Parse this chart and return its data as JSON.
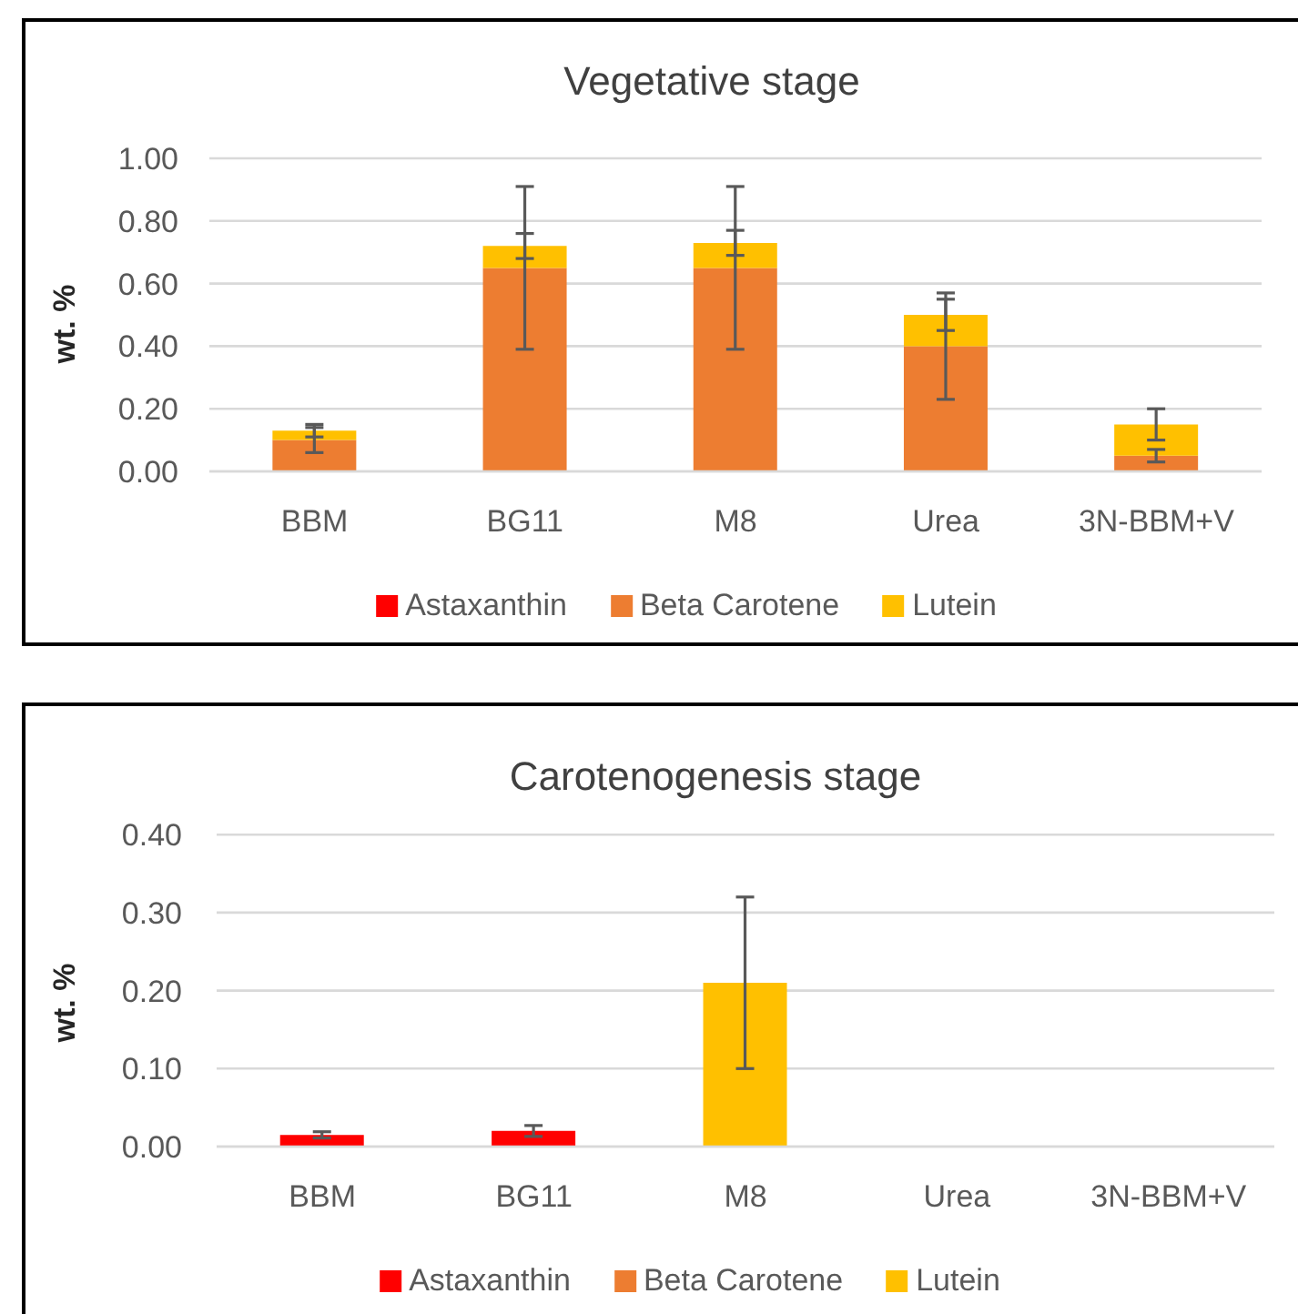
{
  "chart_data": [
    {
      "type": "bar",
      "title": "Vegetative stage",
      "ylabel": "wt. %",
      "categories": [
        "BBM",
        "BG11",
        "M8",
        "Urea",
        "3N-BBM+V"
      ],
      "stacked": true,
      "series": [
        {
          "name": "Astaxanthin",
          "color": "#ff0000",
          "values": [
            null,
            null,
            null,
            null,
            null
          ]
        },
        {
          "name": "Beta Carotene",
          "color": "#ed7d31",
          "values": [
            0.1,
            0.65,
            0.65,
            0.4,
            0.05
          ],
          "errors": [
            0.04,
            0.26,
            0.26,
            0.17,
            0.02
          ]
        },
        {
          "name": "Lutein",
          "color": "#ffc000",
          "values": [
            0.03,
            0.07,
            0.08,
            0.1,
            0.1
          ],
          "errors": [
            0.02,
            0.04,
            0.04,
            0.05,
            0.05
          ]
        }
      ],
      "ylim": [
        0,
        1
      ],
      "yticks": [
        {
          "value": 0,
          "label": "0.00"
        },
        {
          "value": 0.2,
          "label": "0.20"
        },
        {
          "value": 0.4,
          "label": "0.40"
        },
        {
          "value": 0.6,
          "label": "0.60"
        },
        {
          "value": 0.8,
          "label": "0.80"
        },
        {
          "value": 1,
          "label": "1.00"
        }
      ],
      "grid": "y",
      "legend": "bottom"
    },
    {
      "type": "bar",
      "title": "Carotenogenesis stage",
      "ylabel": "wt. %",
      "categories": [
        "BBM",
        "BG11",
        "M8",
        "Urea",
        "3N-BBM+V"
      ],
      "stacked": true,
      "series": [
        {
          "name": "Astaxanthin",
          "color": "#ff0000",
          "values": [
            0.015,
            0.02,
            null,
            null,
            null
          ],
          "errors": [
            0.004,
            0.007,
            null,
            null,
            null
          ]
        },
        {
          "name": "Beta Carotene",
          "color": "#ed7d31",
          "values": [
            null,
            null,
            null,
            null,
            null
          ]
        },
        {
          "name": "Lutein",
          "color": "#ffc000",
          "values": [
            null,
            null,
            0.21,
            null,
            null
          ],
          "errors": [
            null,
            null,
            0.11,
            null,
            null
          ]
        }
      ],
      "ylim": [
        0,
        0.4
      ],
      "yticks": [
        {
          "value": 0,
          "label": "0.00"
        },
        {
          "value": 0.1,
          "label": "0.10"
        },
        {
          "value": 0.2,
          "label": "0.20"
        },
        {
          "value": 0.3,
          "label": "0.30"
        },
        {
          "value": 0.4,
          "label": "0.40"
        }
      ],
      "grid": "y",
      "legend": "bottom"
    }
  ]
}
